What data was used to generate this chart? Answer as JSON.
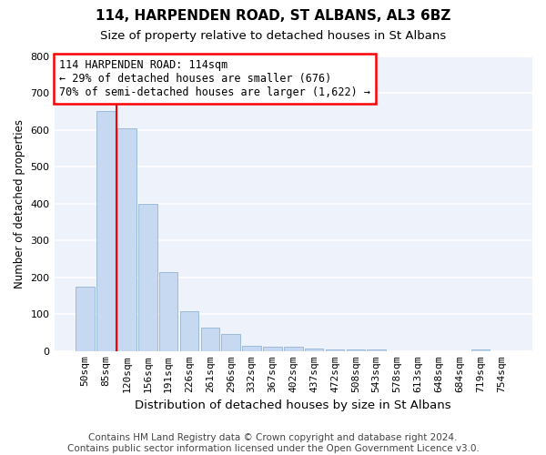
{
  "title1": "114, HARPENDEN ROAD, ST ALBANS, AL3 6BZ",
  "title2": "Size of property relative to detached houses in St Albans",
  "xlabel": "Distribution of detached houses by size in St Albans",
  "ylabel": "Number of detached properties",
  "categories": [
    "50sqm",
    "85sqm",
    "120sqm",
    "156sqm",
    "191sqm",
    "226sqm",
    "261sqm",
    "296sqm",
    "332sqm",
    "367sqm",
    "402sqm",
    "437sqm",
    "472sqm",
    "508sqm",
    "543sqm",
    "578sqm",
    "613sqm",
    "648sqm",
    "684sqm",
    "719sqm",
    "754sqm"
  ],
  "values": [
    175,
    650,
    605,
    400,
    215,
    107,
    63,
    47,
    15,
    13,
    12,
    7,
    5,
    5,
    5,
    0,
    0,
    0,
    0,
    5,
    0
  ],
  "bar_color": "#c6d9f0",
  "bar_edge_color": "#9dbbd8",
  "annotation_text": "114 HARPENDEN ROAD: 114sqm\n← 29% of detached houses are smaller (676)\n70% of semi-detached houses are larger (1,622) →",
  "annotation_box_color": "white",
  "annotation_box_edge": "red",
  "footer1": "Contains HM Land Registry data © Crown copyright and database right 2024.",
  "footer2": "Contains public sector information licensed under the Open Government Licence v3.0.",
  "ylim": [
    0,
    800
  ],
  "yticks": [
    0,
    100,
    200,
    300,
    400,
    500,
    600,
    700,
    800
  ],
  "bg_color": "#ffffff",
  "plot_bg_color": "#eef2fa",
  "grid_color": "#ffffff",
  "title1_fontsize": 11,
  "title2_fontsize": 9.5,
  "xlabel_fontsize": 9.5,
  "ylabel_fontsize": 8.5,
  "tick_fontsize": 8,
  "footer_fontsize": 7.5,
  "red_line_index": 1.5
}
